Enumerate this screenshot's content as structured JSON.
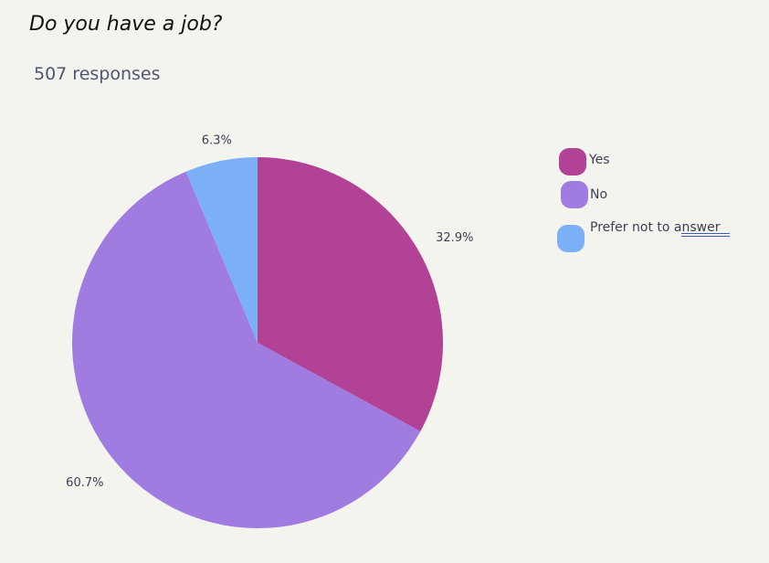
{
  "chart_data": {
    "type": "pie",
    "title": "Do you have a job?",
    "subtitle": "507 responses",
    "categories": [
      "Yes",
      "No",
      "Prefer not to answer"
    ],
    "values": [
      32.9,
      60.7,
      6.3
    ],
    "value_labels": [
      "32.9%",
      "60.7%",
      "6.3%"
    ],
    "colors": [
      "#b14296",
      "#a07be0",
      "#7bb0f6"
    ],
    "legend_position": "right"
  }
}
